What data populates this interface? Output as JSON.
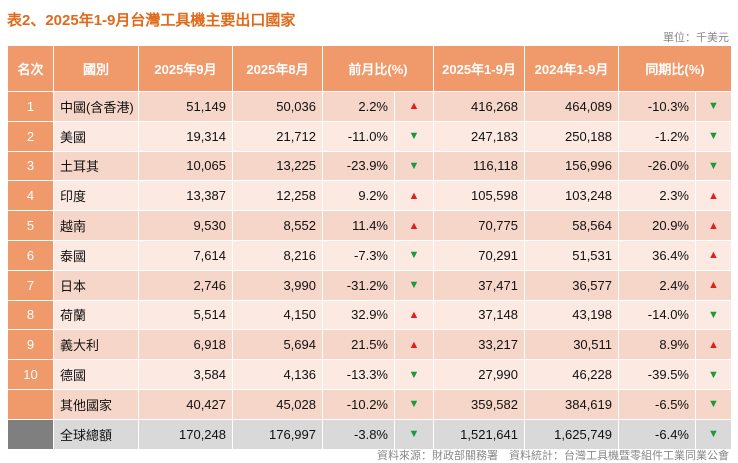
{
  "title": "表2、2025年1-9月台灣工具機主要出口國家",
  "unit": "單位：千美元",
  "headers": [
    "名次",
    "國別",
    "2025年9月",
    "2025年8月",
    "前月比(%)",
    "2025年1-9月",
    "2024年1-9月",
    "同期比(%)"
  ],
  "rows": [
    {
      "rank": "1",
      "country": "中國(含香港)",
      "sep": "51,149",
      "aug": "50,036",
      "mom": "2.2%",
      "mom_dir": "up",
      "ytd": "416,268",
      "prev": "464,089",
      "yoy": "-10.3%",
      "yoy_dir": "down"
    },
    {
      "rank": "2",
      "country": "美國",
      "sep": "19,314",
      "aug": "21,712",
      "mom": "-11.0%",
      "mom_dir": "down",
      "ytd": "247,183",
      "prev": "250,188",
      "yoy": "-1.2%",
      "yoy_dir": "down"
    },
    {
      "rank": "3",
      "country": "土耳其",
      "sep": "10,065",
      "aug": "13,225",
      "mom": "-23.9%",
      "mom_dir": "down",
      "ytd": "116,118",
      "prev": "156,996",
      "yoy": "-26.0%",
      "yoy_dir": "down"
    },
    {
      "rank": "4",
      "country": "印度",
      "sep": "13,387",
      "aug": "12,258",
      "mom": "9.2%",
      "mom_dir": "up",
      "ytd": "105,598",
      "prev": "103,248",
      "yoy": "2.3%",
      "yoy_dir": "up"
    },
    {
      "rank": "5",
      "country": "越南",
      "sep": "9,530",
      "aug": "8,552",
      "mom": "11.4%",
      "mom_dir": "up",
      "ytd": "70,775",
      "prev": "58,564",
      "yoy": "20.9%",
      "yoy_dir": "up"
    },
    {
      "rank": "6",
      "country": "泰國",
      "sep": "7,614",
      "aug": "8,216",
      "mom": "-7.3%",
      "mom_dir": "down",
      "ytd": "70,291",
      "prev": "51,531",
      "yoy": "36.4%",
      "yoy_dir": "up"
    },
    {
      "rank": "7",
      "country": "日本",
      "sep": "2,746",
      "aug": "3,990",
      "mom": "-31.2%",
      "mom_dir": "down",
      "ytd": "37,471",
      "prev": "36,577",
      "yoy": "2.4%",
      "yoy_dir": "up"
    },
    {
      "rank": "8",
      "country": "荷蘭",
      "sep": "5,514",
      "aug": "4,150",
      "mom": "32.9%",
      "mom_dir": "up",
      "ytd": "37,148",
      "prev": "43,198",
      "yoy": "-14.0%",
      "yoy_dir": "down"
    },
    {
      "rank": "9",
      "country": "義大利",
      "sep": "6,918",
      "aug": "5,694",
      "mom": "21.5%",
      "mom_dir": "up",
      "ytd": "33,217",
      "prev": "30,511",
      "yoy": "8.9%",
      "yoy_dir": "up"
    },
    {
      "rank": "10",
      "country": "德國",
      "sep": "3,584",
      "aug": "4,136",
      "mom": "-13.3%",
      "mom_dir": "down",
      "ytd": "27,990",
      "prev": "46,228",
      "yoy": "-39.5%",
      "yoy_dir": "down"
    },
    {
      "rank": "",
      "country": "其他國家",
      "sep": "40,427",
      "aug": "45,028",
      "mom": "-10.2%",
      "mom_dir": "down",
      "ytd": "359,582",
      "prev": "384,619",
      "yoy": "-6.5%",
      "yoy_dir": "down"
    },
    {
      "rank": "",
      "country": "全球總額",
      "sep": "170,248",
      "aug": "176,997",
      "mom": "-3.8%",
      "mom_dir": "down",
      "ytd": "1,521,641",
      "prev": "1,625,749",
      "yoy": "-6.4%",
      "yoy_dir": "down"
    }
  ],
  "source": "資料來源：財政部關務署　資料統計：台灣工具機暨零組件工業同業公會",
  "colors": {
    "header": "#f0996a",
    "up": "#e02020",
    "down": "#1a9a3a"
  }
}
